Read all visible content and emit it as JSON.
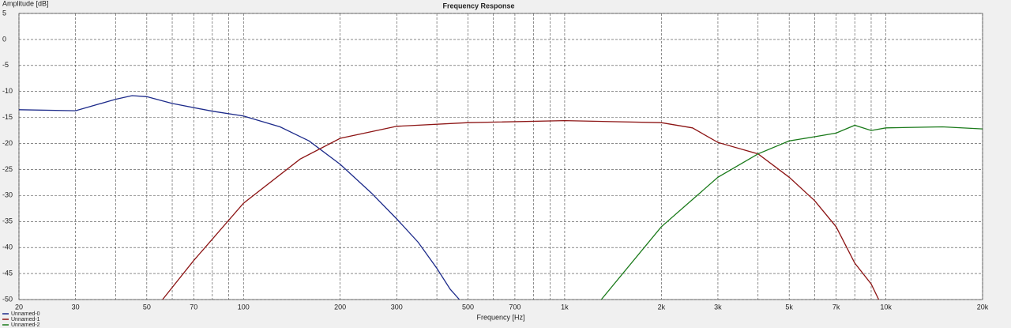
{
  "chart_data": {
    "type": "line",
    "title": "Frequency Response",
    "y_label": "Amplitude [dB]",
    "x_label": "Frequency [Hz]",
    "log_x": true,
    "grid": true,
    "xlim": [
      20,
      20000
    ],
    "ylim": [
      -50,
      5
    ],
    "xticks": [
      20,
      30,
      50,
      70,
      100,
      200,
      300,
      500,
      700,
      {
        "value": 1000,
        "label": "1k"
      },
      {
        "value": 2000,
        "label": "2k"
      },
      {
        "value": 3000,
        "label": "3k"
      },
      {
        "value": 5000,
        "label": "5k"
      },
      {
        "value": 7000,
        "label": "7k"
      },
      {
        "value": 10000,
        "label": "10k"
      },
      {
        "value": 20000,
        "label": "20k"
      }
    ],
    "minor_xticks": [
      40,
      60,
      80,
      90,
      400,
      600,
      800,
      900,
      4000,
      6000,
      8000,
      9000
    ],
    "yticks": [
      5,
      0,
      -5,
      -10,
      -15,
      -20,
      -25,
      -30,
      -35,
      -40,
      -45,
      -50
    ],
    "series": [
      {
        "name": "Unnamed-0",
        "color": "#1c2a8a",
        "x": [
          20,
          30,
          40,
          45,
          50,
          60,
          80,
          100,
          130,
          160,
          200,
          250,
          300,
          350,
          400,
          440,
          470
        ],
        "values": [
          -13.5,
          -13.7,
          -11.5,
          -10.8,
          -11,
          -12.3,
          -13.8,
          -14.7,
          -16.8,
          -19.5,
          -24,
          -29.5,
          -34.5,
          -39,
          -44,
          -48,
          -50
        ]
      },
      {
        "name": "Unnamed-1",
        "color": "#8c1414",
        "x": [
          56,
          70,
          100,
          150,
          200,
          300,
          500,
          1000,
          2000,
          2500,
          3000,
          4000,
          5000,
          6000,
          7000,
          8000,
          9000,
          9500
        ],
        "values": [
          -50,
          -42.5,
          -31.5,
          -23,
          -19,
          -16.7,
          -16,
          -15.6,
          -16,
          -17,
          -19.8,
          -22,
          -26.5,
          -31,
          -36,
          -43,
          -47,
          -50
        ]
      },
      {
        "name": "Unnamed-2",
        "color": "#1a7a1a",
        "x": [
          1300,
          2000,
          3000,
          4000,
          5000,
          6000,
          7000,
          8000,
          9000,
          10000,
          15000,
          20000
        ],
        "values": [
          -50,
          -36,
          -26.5,
          -22,
          -19.5,
          -18.7,
          -18,
          -16.5,
          -17.5,
          -17,
          -16.8,
          -17.2
        ]
      }
    ]
  }
}
